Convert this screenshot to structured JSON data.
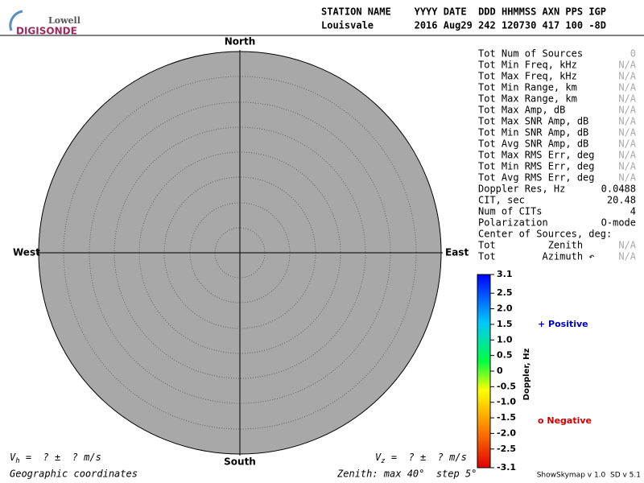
{
  "logo": {
    "top": "Lowell",
    "bottom": "DIGISONDE"
  },
  "header": {
    "line1": "STATION NAME    YYYY DATE  DDD HHMMSS AXN PPS IGP",
    "line2": "Louisvale       2016 Aug29 242 120730 417 100 -8D"
  },
  "compass": {
    "north": "North",
    "south": "South",
    "west": "West",
    "east": "East"
  },
  "table": {
    "rows": [
      {
        "label": "Tot Num of Sources",
        "value": "0",
        "color": "#aaaaaa"
      },
      {
        "label": "Tot Min Freq, kHz",
        "value": "N/A",
        "color": "#aaaaaa"
      },
      {
        "label": "Tot Max Freq, kHz",
        "value": "N/A",
        "color": "#aaaaaa"
      },
      {
        "label": "Tot Min Range, km",
        "value": "N/A",
        "color": "#aaaaaa"
      },
      {
        "label": "Tot Max Range, km",
        "value": "N/A",
        "color": "#aaaaaa"
      },
      {
        "label": "Tot Max Amp, dB",
        "value": "N/A",
        "color": "#aaaaaa"
      },
      {
        "label": "Tot Max SNR Amp, dB",
        "value": "N/A",
        "color": "#aaaaaa"
      },
      {
        "label": "Tot Min SNR Amp, dB",
        "value": "N/A",
        "color": "#aaaaaa"
      },
      {
        "label": "Tot Avg SNR Amp, dB",
        "value": "N/A",
        "color": "#aaaaaa"
      },
      {
        "label": "Tot Max RMS Err, deg",
        "value": "N/A",
        "color": "#aaaaaa"
      },
      {
        "label": "Tot Min RMS Err, deg",
        "value": "N/A",
        "color": "#aaaaaa"
      },
      {
        "label": "Tot Avg RMS Err, deg",
        "value": "N/A",
        "color": "#aaaaaa"
      },
      {
        "label": "Doppler Res, Hz",
        "value": "0.0488",
        "color": "#000000"
      },
      {
        "label": "CIT, sec",
        "value": "20.48",
        "color": "#000000"
      },
      {
        "label": "Num of CITs",
        "value": "4",
        "color": "#000000"
      },
      {
        "label": "Polarization",
        "value": "O-mode",
        "color": "#000000"
      },
      {
        "label": "Center of Sources, deg:"
      },
      {
        "label": "Tot         Zenith",
        "value": "N/A",
        "color": "#aaaaaa"
      },
      {
        "label": "Tot        Azimuth ↶",
        "value": "N/A",
        "color": "#aaaaaa"
      }
    ]
  },
  "colorbar": {
    "title": "Doppler, Hz",
    "lim": [
      -3.1,
      3.1
    ],
    "ticks": [
      3.1,
      2.5,
      {
        "value": 2,
        "label": "2.0"
      },
      1.5,
      {
        "value": 1,
        "label": "1.0"
      },
      0.5,
      0,
      -0.5,
      {
        "value": -1,
        "label": "-1.0"
      },
      -1.5,
      {
        "value": -2,
        "label": "-2.0"
      },
      -2.5,
      -3.1
    ]
  },
  "legend": {
    "positive": "+ Positive",
    "positive_color": "#0000c0",
    "negative": "o Negative",
    "negative_color": "#d00000"
  },
  "footer": {
    "vh_v": "V",
    "vh_sub": "h",
    "vh_rest": " =  ? ±  ? m/s",
    "vz_v": "V",
    "vz_sub": "z",
    "vz_rest": " =  ? ±  ? m/s",
    "coords": "Geographic coordinates",
    "zenith": "Zenith: max 40°  step 5°",
    "version": "ShowSkymap v 1.0  SD v 5.1"
  }
}
